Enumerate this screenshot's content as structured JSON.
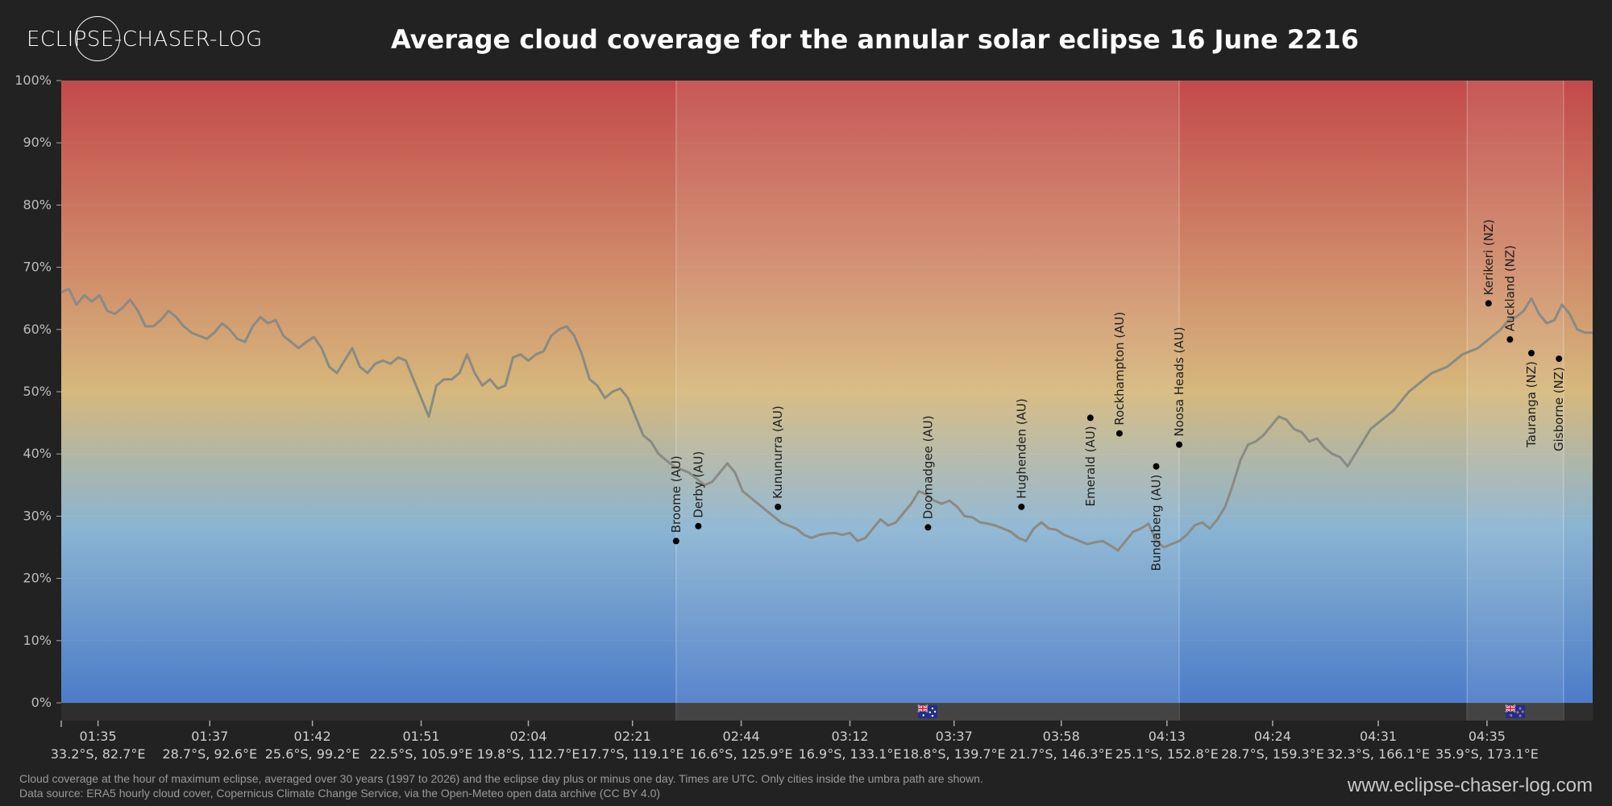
{
  "header": {
    "logo_text": "ECLIPSE-CHASER-LOG",
    "title": "Average cloud coverage for the annular solar eclipse 16 June 2216"
  },
  "footer": {
    "note_line1": "Cloud coverage at the hour of maximum eclipse, averaged over 30 years (1997 to 2026) and the eclipse day plus or minus one day. Times are UTC. Only cities inside the umbra path are shown.",
    "note_line2": "Data source: ERA5 hourly cloud cover, Copernicus Climate Change Service, via the Open-Meteo open data archive (CC BY 4.0)",
    "website": "www.eclipse-chaser-log.com"
  },
  "chart_data": {
    "type": "line",
    "title": "Average cloud coverage for the annular solar eclipse 16 June 2216",
    "ylim": [
      0,
      100
    ],
    "xlim": [
      0,
      100
    ],
    "y_ticks": [
      "0%",
      "10%",
      "20%",
      "30%",
      "40%",
      "50%",
      "60%",
      "70%",
      "80%",
      "90%",
      "100%"
    ],
    "x_ticks": [
      {
        "x": 2.4,
        "time": "01:35",
        "coord": "33.2°S, 82.7°E"
      },
      {
        "x": 9.7,
        "time": "01:37",
        "coord": "28.7°S, 92.6°E"
      },
      {
        "x": 16.4,
        "time": "01:42",
        "coord": "25.6°S, 99.2°E"
      },
      {
        "x": 23.5,
        "time": "01:51",
        "coord": "22.5°S, 105.9°E"
      },
      {
        "x": 30.5,
        "time": "02:04",
        "coord": "19.8°S, 112.7°E"
      },
      {
        "x": 37.3,
        "time": "02:21",
        "coord": "17.7°S, 119.1°E"
      },
      {
        "x": 44.4,
        "time": "02:44",
        "coord": "16.6°S, 125.9°E"
      },
      {
        "x": 51.5,
        "time": "03:12",
        "coord": "16.9°S, 133.1°E"
      },
      {
        "x": 58.3,
        "time": "03:37",
        "coord": "18.8°S, 139.7°E"
      },
      {
        "x": 65.3,
        "time": "03:58",
        "coord": "21.7°S, 146.3°E"
      },
      {
        "x": 72.2,
        "time": "04:13",
        "coord": "25.1°S, 152.8°E"
      },
      {
        "x": 79.1,
        "time": "04:24",
        "coord": "28.7°S, 159.3°E"
      },
      {
        "x": 86.0,
        "time": "04:31",
        "coord": "32.3°S, 166.1°E"
      },
      {
        "x": 93.1,
        "time": "04:35",
        "coord": "35.9°S, 173.1°E"
      }
    ],
    "land_regions": [
      {
        "name": "Australia",
        "x_start": 40.15,
        "x_end": 73.0,
        "flag": "au"
      },
      {
        "name": "New Zealand",
        "x_start": 91.8,
        "x_end": 98.1,
        "flag": "nz"
      }
    ],
    "series": [
      {
        "color": "#8a8a84",
        "points": [
          [
            0,
            66
          ],
          [
            0.5,
            66.5
          ],
          [
            1,
            64
          ],
          [
            1.5,
            65.5
          ],
          [
            2,
            64.5
          ],
          [
            2.5,
            65.5
          ],
          [
            3,
            63
          ],
          [
            3.5,
            62.5
          ],
          [
            4,
            63.5
          ],
          [
            4.5,
            64.8
          ],
          [
            5,
            63
          ],
          [
            5.5,
            60.5
          ],
          [
            6,
            60.5
          ],
          [
            6.5,
            61.5
          ],
          [
            7,
            63
          ],
          [
            7.5,
            62
          ],
          [
            8,
            60.5
          ],
          [
            8.5,
            59.5
          ],
          [
            9,
            59
          ],
          [
            9.5,
            58.5
          ],
          [
            10,
            59.5
          ],
          [
            10.5,
            61
          ],
          [
            11,
            60
          ],
          [
            11.5,
            58.5
          ],
          [
            12,
            58
          ],
          [
            12.5,
            60.5
          ],
          [
            13,
            62
          ],
          [
            13.5,
            61
          ],
          [
            14,
            61.5
          ],
          [
            14.5,
            59
          ],
          [
            15,
            58
          ],
          [
            15.5,
            57
          ],
          [
            16,
            58
          ],
          [
            16.5,
            58.8
          ],
          [
            17,
            57
          ],
          [
            17.5,
            54
          ],
          [
            18,
            53
          ],
          [
            18.5,
            55
          ],
          [
            19,
            57
          ],
          [
            19.5,
            54
          ],
          [
            20,
            53
          ],
          [
            20.5,
            54.5
          ],
          [
            21,
            55
          ],
          [
            21.5,
            54.5
          ],
          [
            22,
            55.5
          ],
          [
            22.5,
            55
          ],
          [
            23,
            52
          ],
          [
            23.5,
            49
          ],
          [
            24,
            46
          ],
          [
            24.5,
            51
          ],
          [
            25,
            52
          ],
          [
            25.5,
            52
          ],
          [
            26,
            53
          ],
          [
            26.5,
            56
          ],
          [
            27,
            53
          ],
          [
            27.5,
            51
          ],
          [
            28,
            52
          ],
          [
            28.5,
            50.5
          ],
          [
            29,
            51
          ],
          [
            29.5,
            55.5
          ],
          [
            30,
            56
          ],
          [
            30.5,
            55
          ],
          [
            31,
            56
          ],
          [
            31.5,
            56.5
          ],
          [
            32,
            59
          ],
          [
            32.5,
            60
          ],
          [
            33,
            60.5
          ],
          [
            33.5,
            59
          ],
          [
            34,
            56
          ],
          [
            34.5,
            52
          ],
          [
            35,
            51
          ],
          [
            35.5,
            49
          ],
          [
            36,
            50
          ],
          [
            36.5,
            50.5
          ],
          [
            37,
            49
          ],
          [
            37.5,
            46
          ],
          [
            38,
            43
          ],
          [
            38.5,
            42
          ],
          [
            39,
            40
          ],
          [
            39.5,
            39
          ],
          [
            40,
            38
          ],
          [
            40.5,
            37.5
          ],
          [
            41,
            37
          ],
          [
            41.5,
            36
          ],
          [
            42,
            35
          ],
          [
            42.5,
            35.5
          ],
          [
            43,
            37
          ],
          [
            43.5,
            38.5
          ],
          [
            44,
            37
          ],
          [
            44.5,
            34
          ],
          [
            45,
            33
          ],
          [
            45.5,
            32
          ],
          [
            46,
            31
          ],
          [
            46.5,
            30
          ],
          [
            47,
            29
          ],
          [
            47.5,
            28.5
          ],
          [
            48,
            28
          ],
          [
            48.5,
            27
          ],
          [
            49,
            26.5
          ],
          [
            49.5,
            27
          ],
          [
            50,
            27.2
          ],
          [
            50.5,
            27.3
          ],
          [
            51,
            27
          ],
          [
            51.5,
            27.3
          ],
          [
            52,
            26
          ],
          [
            52.5,
            26.5
          ],
          [
            53,
            28
          ],
          [
            53.5,
            29.5
          ],
          [
            54,
            28.5
          ],
          [
            54.5,
            29
          ],
          [
            55,
            30.5
          ],
          [
            55.5,
            32
          ],
          [
            56,
            34
          ],
          [
            56.5,
            33.5
          ],
          [
            57,
            32.5
          ],
          [
            57.5,
            32
          ],
          [
            58,
            32.5
          ],
          [
            58.5,
            31.5
          ],
          [
            59,
            30
          ],
          [
            59.5,
            29.8
          ],
          [
            60,
            29
          ],
          [
            60.5,
            28.8
          ],
          [
            61,
            28.5
          ],
          [
            61.5,
            28
          ],
          [
            62,
            27.5
          ],
          [
            62.5,
            26.5
          ],
          [
            63,
            26
          ],
          [
            63.5,
            28
          ],
          [
            64,
            29
          ],
          [
            64.5,
            28
          ],
          [
            65,
            27.8
          ],
          [
            65.5,
            27
          ],
          [
            66,
            26.5
          ],
          [
            66.5,
            26
          ],
          [
            67,
            25.5
          ],
          [
            67.5,
            25.8
          ],
          [
            68,
            26
          ],
          [
            68.5,
            25.3
          ],
          [
            69,
            24.5
          ],
          [
            69.5,
            26
          ],
          [
            70,
            27.5
          ],
          [
            70.5,
            28
          ],
          [
            71,
            28.8
          ],
          [
            71.5,
            26
          ],
          [
            72,
            25
          ],
          [
            72.5,
            25.5
          ],
          [
            73,
            26
          ],
          [
            73.5,
            27
          ],
          [
            74,
            28.5
          ],
          [
            74.5,
            29
          ],
          [
            75,
            28
          ],
          [
            75.5,
            29.5
          ],
          [
            76,
            31.5
          ],
          [
            76.5,
            35
          ],
          [
            77,
            39
          ],
          [
            77.5,
            41.5
          ],
          [
            78,
            42
          ],
          [
            78.5,
            43
          ],
          [
            79,
            44.5
          ],
          [
            79.5,
            46
          ],
          [
            80,
            45.5
          ],
          [
            80.5,
            44
          ],
          [
            81,
            43.5
          ],
          [
            81.5,
            42
          ],
          [
            82,
            42.5
          ],
          [
            82.5,
            41
          ],
          [
            83,
            40
          ],
          [
            83.5,
            39.5
          ],
          [
            84,
            38
          ],
          [
            84.5,
            40
          ],
          [
            85,
            42
          ],
          [
            85.5,
            44
          ],
          [
            86,
            45
          ],
          [
            86.5,
            46
          ],
          [
            87,
            47
          ],
          [
            87.5,
            48.5
          ],
          [
            88,
            50
          ],
          [
            88.5,
            51
          ],
          [
            89,
            52
          ],
          [
            89.5,
            53
          ],
          [
            90,
            53.5
          ],
          [
            90.5,
            54
          ],
          [
            91,
            55
          ],
          [
            91.5,
            56
          ],
          [
            92,
            56.5
          ],
          [
            92.5,
            57
          ],
          [
            93,
            58
          ],
          [
            93.5,
            59
          ],
          [
            94,
            60
          ],
          [
            94.5,
            61.5
          ],
          [
            95,
            62
          ],
          [
            95.5,
            63
          ],
          [
            96,
            65
          ],
          [
            96.5,
            62.5
          ],
          [
            97,
            61
          ],
          [
            97.5,
            61.5
          ],
          [
            98,
            64
          ],
          [
            98.5,
            62.5
          ],
          [
            99,
            60
          ],
          [
            99.5,
            59.5
          ],
          [
            100,
            59.5
          ]
        ]
      }
    ],
    "cities": [
      {
        "name": "Broome (AU)",
        "x": 40.15,
        "y": 26,
        "label_pos": "above"
      },
      {
        "name": "Derby (AU)",
        "x": 41.6,
        "y": 28.4,
        "label_pos": "above"
      },
      {
        "name": "Kununurra (AU)",
        "x": 46.8,
        "y": 31.5,
        "label_pos": "above"
      },
      {
        "name": "Doomadgee (AU)",
        "x": 56.6,
        "y": 28.2,
        "label_pos": "above"
      },
      {
        "name": "Hughenden (AU)",
        "x": 62.7,
        "y": 31.5,
        "label_pos": "above"
      },
      {
        "name": "Emerald (AU)",
        "x": 67.2,
        "y": 45.8,
        "label_pos": "below"
      },
      {
        "name": "Rockhampton (AU)",
        "x": 69.1,
        "y": 43.3,
        "label_pos": "above"
      },
      {
        "name": "Bundaberg (AU)",
        "x": 71.5,
        "y": 38,
        "label_pos": "below"
      },
      {
        "name": "Noosa Heads (AU)",
        "x": 73.0,
        "y": 41.5,
        "label_pos": "above"
      },
      {
        "name": "Kerikeri (NZ)",
        "x": 93.2,
        "y": 64.2,
        "label_pos": "above"
      },
      {
        "name": "Auckland (NZ)",
        "x": 94.6,
        "y": 58.4,
        "label_pos": "above"
      },
      {
        "name": "Tauranga (NZ)",
        "x": 96.0,
        "y": 56.2,
        "label_pos": "below"
      },
      {
        "name": "Gisborne (NZ)",
        "x": 97.8,
        "y": 55.3,
        "label_pos": "below"
      }
    ],
    "colors": {
      "gradient_top": "#c24a4a",
      "gradient_upper": "#d08a6a",
      "gradient_mid": "#d6b87c",
      "gradient_lower": "#8ab4d2",
      "gradient_bottom": "#4c7cc8",
      "line": "#8a8a84",
      "land_band": "#444444",
      "sea_band": "#2e2e2e"
    }
  }
}
